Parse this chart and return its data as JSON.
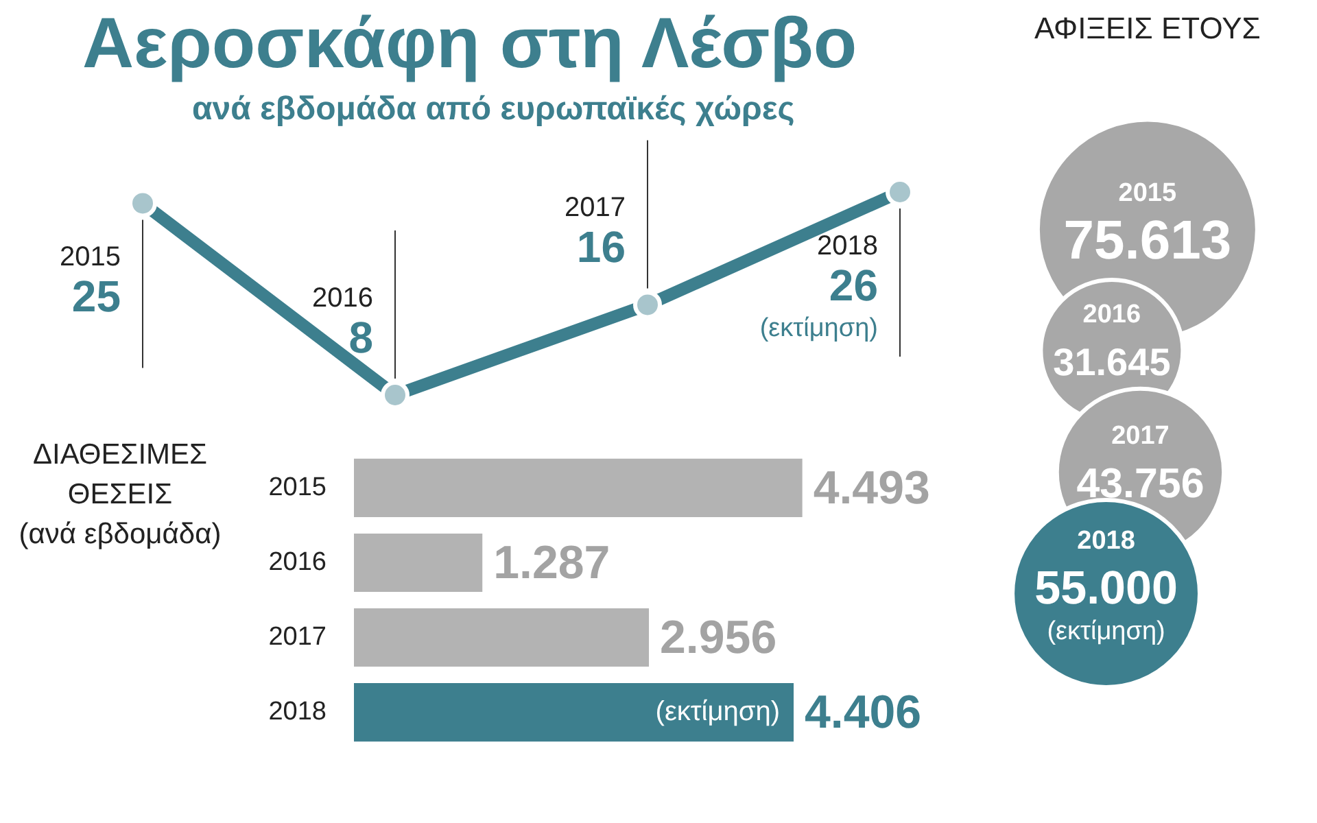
{
  "chart_data": [
    {
      "type": "line",
      "title": "Αεροσκάφη στη Λέσβο",
      "subtitle": "ανά εβδομάδα από ευρωπαϊκές χώρες",
      "categories": [
        "2015",
        "2016",
        "2017",
        "2018"
      ],
      "values": [
        25,
        8,
        16,
        26
      ],
      "color": "#3d7f8e",
      "tick_labels": false,
      "data_labels": true,
      "marker": "circle",
      "grid": "x",
      "annotations": [
        "(εκτίμηση)"
      ]
    },
    {
      "type": "bar",
      "orientation": "horizontal",
      "ylabel": "ΔΙΑΘΕΣΙΜΕΣ\nΘΕΣΕΙΣ\n(ανά εβδομάδα)",
      "categories": [
        "2015",
        "2016",
        "2017",
        "2018"
      ],
      "values": [
        4493,
        1287,
        2956,
        4406
      ],
      "value_labels": [
        "4.493",
        "1.287",
        "2.956",
        "4.406"
      ],
      "colors": [
        "#b3b3b3",
        "#b3b3b3",
        "#b3b3b3",
        "#3d7f8e"
      ],
      "tick_labels": "y",
      "annotations": [
        "(εκτίμηση)"
      ]
    },
    {
      "type": "other",
      "title": "ΑΦΙΞΕΙΣ ΕΤΟΥΣ",
      "categories": [
        "2015",
        "2016",
        "2017",
        "2018"
      ],
      "values": [
        75613,
        31645,
        43756,
        55000
      ],
      "value_labels": [
        "75.613",
        "31.645",
        "43.756",
        "55.000"
      ],
      "colors": [
        "#a8a8a8",
        "#a8a8a8",
        "#a8a8a8",
        "#3d7f8e"
      ],
      "annotations": [
        "(εκτίμηση)"
      ]
    }
  ]
}
